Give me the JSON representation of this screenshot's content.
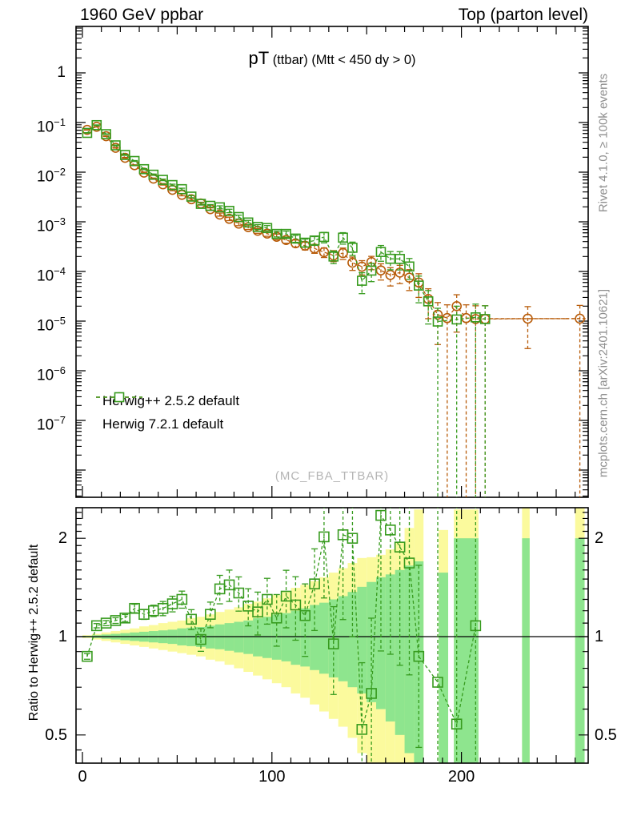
{
  "header": {
    "left": "1960 GeV ppbar",
    "right": "Top (parton level)"
  },
  "title": {
    "main": "pT",
    "rest": " (ttbar) (Mtt < 450 dy > 0)"
  },
  "watermark": "(MC_FBA_TTBAR)",
  "side_captions": {
    "top_right": "Rivet 4.1.0, ≥ 100k events",
    "bottom_right": "mcplots.cern.ch [arXiv:2401.10621]"
  },
  "ratio_ylabel": "Ratio to Herwig++ 2.5.2 default",
  "colors": {
    "series1": "#b85c0a",
    "series2": "#379b1e",
    "band_outer": "#fbfa9d",
    "band_inner": "#8ee58e",
    "frame": "#000000",
    "caption_gray": "#8e8e8e",
    "watermark_gray": "#b5b5b5"
  },
  "legend": [
    {
      "label": "Herwig++ 2.5.2 default",
      "marker": "circle",
      "color": "#b85c0a"
    },
    {
      "label": "Herwig 7.2.1 default",
      "marker": "square",
      "color": "#379b1e"
    }
  ],
  "chart_data": {
    "type": "scatter",
    "title": "pT (ttbar) (Mtt < 450 dy > 0)",
    "beam": "1960 GeV ppbar",
    "analysis_group": "Top (parton level)",
    "x_range": [
      0,
      267
    ],
    "x_ticks": [
      {
        "label": "0",
        "value": 0
      },
      {
        "label": "100",
        "value": 100
      },
      {
        "label": "200",
        "value": 200
      }
    ],
    "top_y_scale": "log",
    "top_y_ticks": [
      {
        "label": "1",
        "exp": 0
      },
      {
        "label": "10^-1",
        "exp": -1
      },
      {
        "label": "10^-2",
        "exp": -2
      },
      {
        "label": "10^-3",
        "exp": -3
      },
      {
        "label": "10^-4",
        "exp": -4
      },
      {
        "label": "10^-5",
        "exp": -5
      },
      {
        "label": "10^-6",
        "exp": -6
      },
      {
        "label": "10^-7",
        "exp": -7
      }
    ],
    "ratio_y_scale": "log",
    "ratio_y_ticks": [
      {
        "label": "2",
        "value": 2
      },
      {
        "label": "1",
        "value": 1
      },
      {
        "label": "0.5",
        "value": 0.5
      }
    ],
    "ratio_reference": "Herwig++ 2.5.2 default",
    "series": [
      {
        "name": "Herwig++ 2.5.2 default",
        "marker": "circle",
        "color": "#b85c0a",
        "points": [
          [
            2.5,
            0.071,
            0.01
          ],
          [
            7.5,
            0.082,
            0.01
          ],
          [
            12.5,
            0.053,
            0.012
          ],
          [
            17.5,
            0.031,
            0.015
          ],
          [
            22.5,
            0.0195,
            0.018
          ],
          [
            27.5,
            0.0138,
            0.02
          ],
          [
            32.5,
            0.0098,
            0.025
          ],
          [
            37.5,
            0.0074,
            0.03
          ],
          [
            42.5,
            0.0057,
            0.035
          ],
          [
            47.5,
            0.0044,
            0.04
          ],
          [
            52.5,
            0.0035,
            0.045
          ],
          [
            57.5,
            0.00285,
            0.05
          ],
          [
            62.5,
            0.00235,
            0.055
          ],
          [
            67.5,
            0.0018,
            0.06
          ],
          [
            72.5,
            0.0014,
            0.07
          ],
          [
            77.5,
            0.00115,
            0.08
          ],
          [
            82.5,
            0.00092,
            0.09
          ],
          [
            87.5,
            0.00078,
            0.1
          ],
          [
            92.5,
            0.00066,
            0.11
          ],
          [
            97.5,
            0.00058,
            0.12
          ],
          [
            102.5,
            0.0005,
            0.13
          ],
          [
            107.5,
            0.00043,
            0.14
          ],
          [
            112.5,
            0.00037,
            0.16
          ],
          [
            117.5,
            0.00033,
            0.18
          ],
          [
            122.5,
            0.00029,
            0.2
          ],
          [
            127.5,
            0.000245,
            0.22
          ],
          [
            132.5,
            0.00021,
            0.25
          ],
          [
            137.5,
            0.000235,
            0.26
          ],
          [
            142.5,
            0.00015,
            0.3
          ],
          [
            147.5,
            0.000125,
            0.32
          ],
          [
            152.5,
            0.000155,
            0.3
          ],
          [
            157.5,
            0.000105,
            0.36
          ],
          [
            162.5,
            8.5e-05,
            0.4
          ],
          [
            167.5,
            9.5e-05,
            0.4
          ],
          [
            172.5,
            7.5e-05,
            0.45
          ],
          [
            177.5,
            6e-05,
            0.5
          ],
          [
            182.5,
            2.8e-05,
            0.6
          ],
          [
            187.5,
            1.35e-05,
            0.75
          ],
          [
            192.5,
            1.15e-05,
            0.85
          ],
          [
            197.5,
            2e-05,
            0.7
          ],
          [
            202.5,
            1.15e-05,
            0.85
          ],
          [
            207.5,
            1.1e-05,
            0.85
          ],
          [
            212.5,
            1.1e-05,
            0.85
          ],
          [
            235,
            1.12e-05,
            0.75,
            20
          ],
          [
            262.5,
            1.12e-05,
            0.85,
            7.5
          ]
        ]
      },
      {
        "name": "Herwig 7.2.1 default",
        "marker": "square",
        "color": "#379b1e",
        "points": [
          [
            2.5,
            0.0618,
            0.01
          ],
          [
            7.5,
            0.0886,
            0.01
          ],
          [
            12.5,
            0.0583,
            0.012
          ],
          [
            17.5,
            0.0347,
            0.015
          ],
          [
            22.5,
            0.0222,
            0.018
          ],
          [
            27.5,
            0.0168,
            0.02
          ],
          [
            32.5,
            0.0115,
            0.025
          ],
          [
            37.5,
            0.0089,
            0.03
          ],
          [
            42.5,
            0.007,
            0.035
          ],
          [
            47.5,
            0.0055,
            0.04
          ],
          [
            52.5,
            0.00455,
            0.045
          ],
          [
            57.5,
            0.00322,
            0.05
          ],
          [
            62.5,
            0.0023,
            0.055
          ],
          [
            67.5,
            0.0021,
            0.06
          ],
          [
            72.5,
            0.00196,
            0.07
          ],
          [
            77.5,
            0.00166,
            0.08
          ],
          [
            82.5,
            0.00125,
            0.09
          ],
          [
            87.5,
            0.00097,
            0.1
          ],
          [
            92.5,
            0.00079,
            0.11
          ],
          [
            97.5,
            0.00075,
            0.12
          ],
          [
            102.5,
            0.00057,
            0.13
          ],
          [
            107.5,
            0.00057,
            0.14
          ],
          [
            112.5,
            0.00046,
            0.16
          ],
          [
            117.5,
            0.00038,
            0.18
          ],
          [
            122.5,
            0.00042,
            0.2
          ],
          [
            127.5,
            0.000495,
            0.24
          ],
          [
            132.5,
            0.0002,
            0.28
          ],
          [
            137.5,
            0.00048,
            0.26
          ],
          [
            142.5,
            0.0003,
            0.3
          ],
          [
            147.5,
            6.5e-05,
            0.45
          ],
          [
            152.5,
            0.000104,
            0.4
          ],
          [
            157.5,
            0.000247,
            0.35
          ],
          [
            162.5,
            0.00018,
            0.4
          ],
          [
            167.5,
            0.000179,
            0.4
          ],
          [
            172.5,
            0.000126,
            0.45
          ],
          [
            177.5,
            5.2e-05,
            0.55
          ],
          [
            182.5,
            2.5e-05,
            0.65
          ],
          [
            187.5,
            9.8e-06,
            0.85
          ],
          [
            197.5,
            1.08e-05,
            0.85
          ],
          [
            207.5,
            1.19e-05,
            0.85
          ],
          [
            212.5,
            1.1e-05,
            0.85
          ]
        ]
      }
    ],
    "ratio": {
      "points": [
        [
          2.5,
          0.87,
          0.02
        ],
        [
          7.5,
          1.08,
          0.015
        ],
        [
          12.5,
          1.1,
          0.018
        ],
        [
          17.5,
          1.12,
          0.02
        ],
        [
          22.5,
          1.14,
          0.025
        ],
        [
          27.5,
          1.22,
          0.03
        ],
        [
          32.5,
          1.17,
          0.035
        ],
        [
          37.5,
          1.2,
          0.04
        ],
        [
          42.5,
          1.22,
          0.05
        ],
        [
          47.5,
          1.26,
          0.055
        ],
        [
          52.5,
          1.3,
          0.06
        ],
        [
          57.5,
          1.13,
          0.07
        ],
        [
          62.5,
          0.98,
          0.08
        ],
        [
          67.5,
          1.17,
          0.09
        ],
        [
          72.5,
          1.4,
          0.1
        ],
        [
          77.5,
          1.44,
          0.11
        ],
        [
          82.5,
          1.36,
          0.12
        ],
        [
          87.5,
          1.24,
          0.13
        ],
        [
          92.5,
          1.19,
          0.15
        ],
        [
          97.5,
          1.3,
          0.16
        ],
        [
          102.5,
          1.14,
          0.18
        ],
        [
          107.5,
          1.33,
          0.2
        ],
        [
          112.5,
          1.25,
          0.22
        ],
        [
          117.5,
          1.16,
          0.25
        ],
        [
          122.5,
          1.45,
          0.28
        ],
        [
          127.5,
          2.02,
          0.35
        ],
        [
          132.5,
          0.95,
          0.3
        ],
        [
          137.5,
          2.05,
          0.45
        ],
        [
          142.5,
          2.0,
          0.5
        ],
        [
          147.5,
          0.52,
          0.3
        ],
        [
          152.5,
          0.67,
          0.35
        ],
        [
          157.5,
          2.35,
          0.8
        ],
        [
          162.5,
          2.12,
          0.7
        ],
        [
          167.5,
          1.88,
          0.65
        ],
        [
          172.5,
          1.68,
          0.6
        ],
        [
          177.5,
          0.87,
          0.45
        ],
        [
          187.5,
          0.725,
          0.5
        ],
        [
          197.5,
          0.54,
          0.4
        ],
        [
          207.5,
          1.08,
          0.75
        ]
      ],
      "bands": [
        [
          0,
          5,
          0.99,
          1.01,
          0.995,
          1.005
        ],
        [
          5,
          10,
          0.98,
          1.02,
          0.99,
          1.01
        ],
        [
          10,
          15,
          0.97,
          1.03,
          0.985,
          1.015
        ],
        [
          15,
          20,
          0.96,
          1.04,
          0.98,
          1.02
        ],
        [
          20,
          25,
          0.95,
          1.05,
          0.975,
          1.025
        ],
        [
          25,
          30,
          0.94,
          1.06,
          0.97,
          1.03
        ],
        [
          30,
          35,
          0.93,
          1.075,
          0.965,
          1.035
        ],
        [
          35,
          40,
          0.92,
          1.085,
          0.96,
          1.04
        ],
        [
          40,
          45,
          0.91,
          1.1,
          0.955,
          1.045
        ],
        [
          45,
          50,
          0.9,
          1.11,
          0.95,
          1.05
        ],
        [
          50,
          55,
          0.89,
          1.12,
          0.94,
          1.06
        ],
        [
          55,
          60,
          0.88,
          1.14,
          0.935,
          1.065
        ],
        [
          60,
          65,
          0.87,
          1.15,
          0.93,
          1.07
        ],
        [
          65,
          70,
          0.85,
          1.17,
          0.92,
          1.08
        ],
        [
          70,
          75,
          0.84,
          1.19,
          0.915,
          1.09
        ],
        [
          75,
          80,
          0.82,
          1.21,
          0.905,
          1.1
        ],
        [
          80,
          85,
          0.8,
          1.23,
          0.895,
          1.11
        ],
        [
          85,
          90,
          0.78,
          1.26,
          0.885,
          1.12
        ],
        [
          90,
          95,
          0.76,
          1.28,
          0.87,
          1.14
        ],
        [
          95,
          100,
          0.74,
          1.31,
          0.86,
          1.15
        ],
        [
          100,
          105,
          0.72,
          1.34,
          0.85,
          1.17
        ],
        [
          105,
          110,
          0.7,
          1.37,
          0.84,
          1.18
        ],
        [
          110,
          115,
          0.67,
          1.41,
          0.82,
          1.2
        ],
        [
          115,
          120,
          0.65,
          1.44,
          0.81,
          1.22
        ],
        [
          120,
          125,
          0.62,
          1.48,
          0.79,
          1.25
        ],
        [
          125,
          130,
          0.59,
          1.52,
          0.77,
          1.27
        ],
        [
          130,
          135,
          0.56,
          1.57,
          0.75,
          1.3
        ],
        [
          135,
          140,
          0.53,
          1.62,
          0.73,
          1.33
        ],
        [
          140,
          145,
          0.49,
          1.68,
          0.7,
          1.37
        ],
        [
          145,
          150,
          0.44,
          1.74,
          0.67,
          1.42
        ],
        [
          150,
          155,
          0.4,
          1.75,
          0.63,
          1.47
        ],
        [
          155,
          160,
          0.4,
          1.78,
          0.6,
          1.52
        ],
        [
          160,
          165,
          0.4,
          1.85,
          0.55,
          1.55
        ],
        [
          165,
          170,
          0.4,
          1.95,
          0.5,
          1.6
        ],
        [
          170,
          175,
          0.4,
          2.15,
          0.44,
          1.65
        ],
        [
          175,
          180,
          0.4,
          2.45,
          0.4,
          1.7
        ],
        [
          188,
          193,
          0.4,
          2.12,
          0.4,
          1.57
        ],
        [
          196,
          209,
          0.4,
          2.45,
          0.4,
          2.0
        ],
        [
          232,
          236,
          0.4,
          2.55,
          0.4,
          2.0
        ],
        [
          260,
          265,
          0.4,
          2.55,
          0.4,
          2.0
        ]
      ],
      "band_colors": {
        "outer": "#fbfa9d",
        "inner": "#8ee58e"
      }
    }
  }
}
